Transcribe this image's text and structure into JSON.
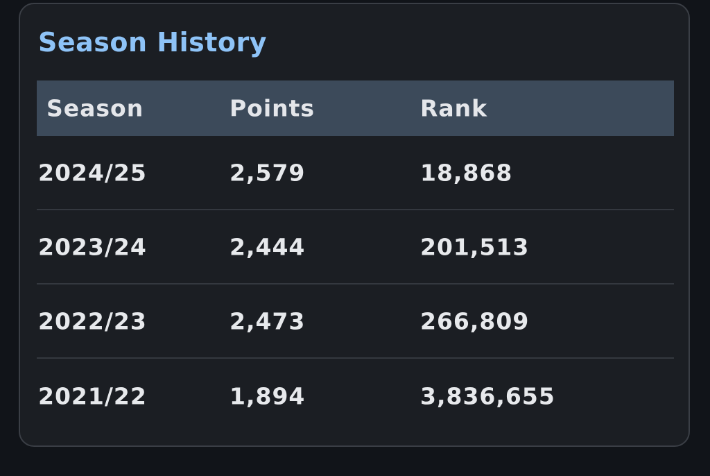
{
  "card": {
    "title": "Season History"
  },
  "table": {
    "headers": [
      "Season",
      "Points",
      "Rank"
    ],
    "rows": [
      [
        "2024/25",
        "2,579",
        "18,868"
      ],
      [
        "2023/24",
        "2,444",
        "201,513"
      ],
      [
        "2022/23",
        "2,473",
        "266,809"
      ],
      [
        "2021/22",
        "1,894",
        "3,836,655"
      ]
    ]
  },
  "colors": {
    "page_background": "#111419",
    "card_background": "#1b1e23",
    "title": "#8ec3f7",
    "header_background": "#3c4a5a",
    "text": "#e7e9ec"
  }
}
